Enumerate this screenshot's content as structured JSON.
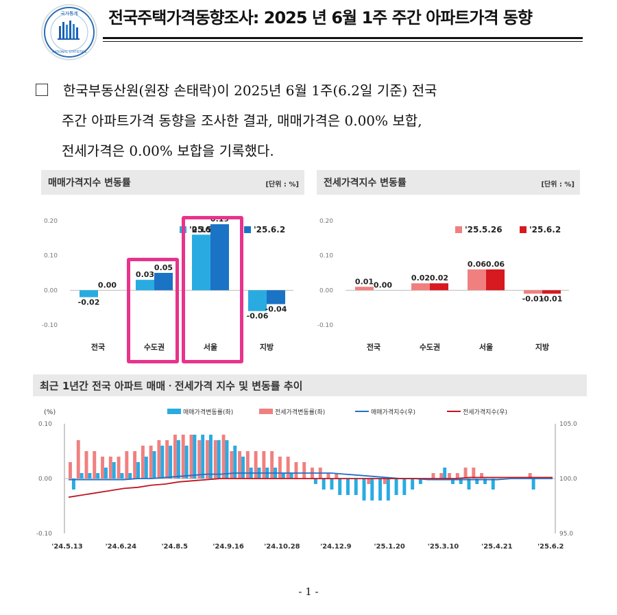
{
  "header": {
    "title": "전국주택가격동향조사: 2025 년 6월 1주 주간 아파트가격 동향",
    "logo_text_top": "국가통계",
    "logo_text_bottom": "NATIONAL STATISTICS"
  },
  "intro": {
    "line1": "한국부동산원(원장 손태락)이 2025년 6월 1주(6.2일 기준) 전국",
    "line2": "주간 아파트가격 동향을 조사한 결과, 매매가격은 0.00% 보합,",
    "line3": "전세가격은 0.00% 보합을 기록했다."
  },
  "sale_panel": {
    "title": "매매가격지수 변동률",
    "unit": "[단위 : %]"
  },
  "jeonse_panel": {
    "title": "전세가격지수 변동률",
    "unit": "[단위 : %]"
  },
  "trend_panel": {
    "title": "최근 1년간 전국 아파트 매매ㆍ전세가격 지수 및 변동률 추이"
  },
  "page_number": "- 1 -",
  "colors": {
    "sale_prev": "#29abe2",
    "sale_curr": "#1a73c4",
    "jeonse_prev": "#f08080",
    "jeonse_curr": "#d71920",
    "highlight": "#e8338b",
    "sale_index_line": "#1f6fc5",
    "jeonse_index_line": "#c0141e"
  },
  "chart_data": [
    {
      "type": "bar",
      "title": "매매가격지수 변동률",
      "unit": "[단위 : %]",
      "categories": [
        "전국",
        "수도권",
        "서울",
        "지방"
      ],
      "series": [
        {
          "name": "'25.5.26",
          "values": [
            -0.02,
            0.03,
            0.16,
            -0.06
          ]
        },
        {
          "name": "'25.6.2",
          "values": [
            0.0,
            0.05,
            0.19,
            -0.04
          ]
        }
      ],
      "ylim": [
        -0.1,
        0.2
      ],
      "yticks": [
        "0.20",
        "0.10",
        "0.00",
        "-0.10"
      ],
      "highlighted_categories": [
        "수도권",
        "서울"
      ]
    },
    {
      "type": "bar",
      "title": "전세가격지수 변동률",
      "unit": "[단위 : %]",
      "categories": [
        "전국",
        "수도권",
        "서울",
        "지방"
      ],
      "series": [
        {
          "name": "'25.5.26",
          "values": [
            0.01,
            0.02,
            0.06,
            -0.01
          ]
        },
        {
          "name": "'25.6.2",
          "values": [
            0.0,
            0.02,
            0.06,
            -0.01
          ]
        }
      ],
      "ylim": [
        -0.1,
        0.2
      ],
      "yticks": [
        "0.20",
        "0.10",
        "0.00",
        "-0.10"
      ]
    },
    {
      "type": "bar",
      "title": "최근 1년간 전국 아파트 매매ㆍ전세가격 지수 및 변동률 추이",
      "y_left_label": "(%)",
      "y_left_ticks": [
        "0.10",
        "0.00",
        "-0.10"
      ],
      "y_left_lim": [
        -0.1,
        0.1
      ],
      "y_right_ticks": [
        "105.0",
        "100.0",
        "95.0"
      ],
      "y_right_lim": [
        95.0,
        105.0
      ],
      "x_tick_labels": [
        "'24.5.13",
        "'24.6.24",
        "'24.8.5",
        "'24.9.16",
        "'24.10.28",
        "'24.12.9",
        "'25.1.20",
        "'25.3.10",
        "'25.4.21",
        "'25.6.2"
      ],
      "series": [
        {
          "name": "매매가격변동률(좌)",
          "kind": "bar",
          "values": [
            -0.02,
            0.01,
            0.01,
            0.01,
            0.02,
            0.03,
            0.01,
            0.01,
            0.03,
            0.04,
            0.05,
            0.06,
            0.06,
            0.07,
            0.06,
            0.08,
            0.08,
            0.08,
            0.07,
            0.07,
            0.06,
            0.04,
            0.02,
            0.02,
            0.02,
            0.02,
            0.01,
            0.01,
            0.0,
            0.0,
            -0.01,
            -0.02,
            -0.02,
            -0.03,
            -0.03,
            -0.03,
            -0.04,
            -0.04,
            -0.04,
            -0.04,
            -0.03,
            -0.03,
            -0.02,
            -0.01,
            0.0,
            0.0,
            0.02,
            -0.01,
            -0.01,
            -0.02,
            -0.01,
            -0.01,
            -0.02,
            0.0,
            0.0,
            0.0,
            0.0,
            -0.02,
            0.0,
            0.0
          ]
        },
        {
          "name": "전세가격변동률(좌)",
          "kind": "bar",
          "values": [
            0.03,
            0.07,
            0.05,
            0.05,
            0.04,
            0.04,
            0.04,
            0.05,
            0.05,
            0.06,
            0.06,
            0.07,
            0.07,
            0.08,
            0.08,
            0.08,
            0.07,
            0.07,
            0.07,
            0.08,
            0.05,
            0.05,
            0.05,
            0.05,
            0.05,
            0.05,
            0.04,
            0.04,
            0.03,
            0.03,
            0.02,
            0.02,
            0.01,
            0.01,
            0.0,
            0.0,
            0.0,
            -0.01,
            0.0,
            -0.01,
            0.0,
            0.0,
            0.0,
            0.0,
            0.0,
            0.01,
            0.01,
            0.01,
            0.01,
            0.02,
            0.02,
            0.01,
            0.0,
            0.0,
            0.0,
            0.0,
            0.0,
            0.01,
            0.0,
            0.0
          ]
        },
        {
          "name": "매매가격지수(우)",
          "kind": "line",
          "values": [
            99.9,
            99.9,
            99.9,
            99.9,
            99.9,
            100.0,
            100.0,
            100.1,
            100.2,
            100.3,
            100.4,
            100.4,
            100.5,
            100.5,
            100.5,
            100.5,
            100.5,
            100.5,
            100.5,
            100.5,
            100.4,
            100.3,
            100.2,
            100.1,
            100.0,
            100.0,
            99.9,
            99.9,
            99.9,
            99.9,
            99.9,
            99.9,
            100.0,
            100.0,
            100.0,
            100.0
          ]
        },
        {
          "name": "전세가격지수(우)",
          "kind": "line",
          "values": [
            98.3,
            98.5,
            98.7,
            98.9,
            99.1,
            99.2,
            99.4,
            99.5,
            99.7,
            99.8,
            99.9,
            100.0,
            100.0,
            100.0,
            100.0,
            100.0,
            100.0,
            100.0,
            100.0,
            100.0,
            100.0,
            100.0,
            100.0,
            100.0,
            100.0,
            100.0,
            100.0,
            100.0,
            100.0,
            100.1,
            100.1,
            100.1,
            100.1,
            100.1,
            100.1,
            100.1
          ]
        }
      ]
    }
  ]
}
